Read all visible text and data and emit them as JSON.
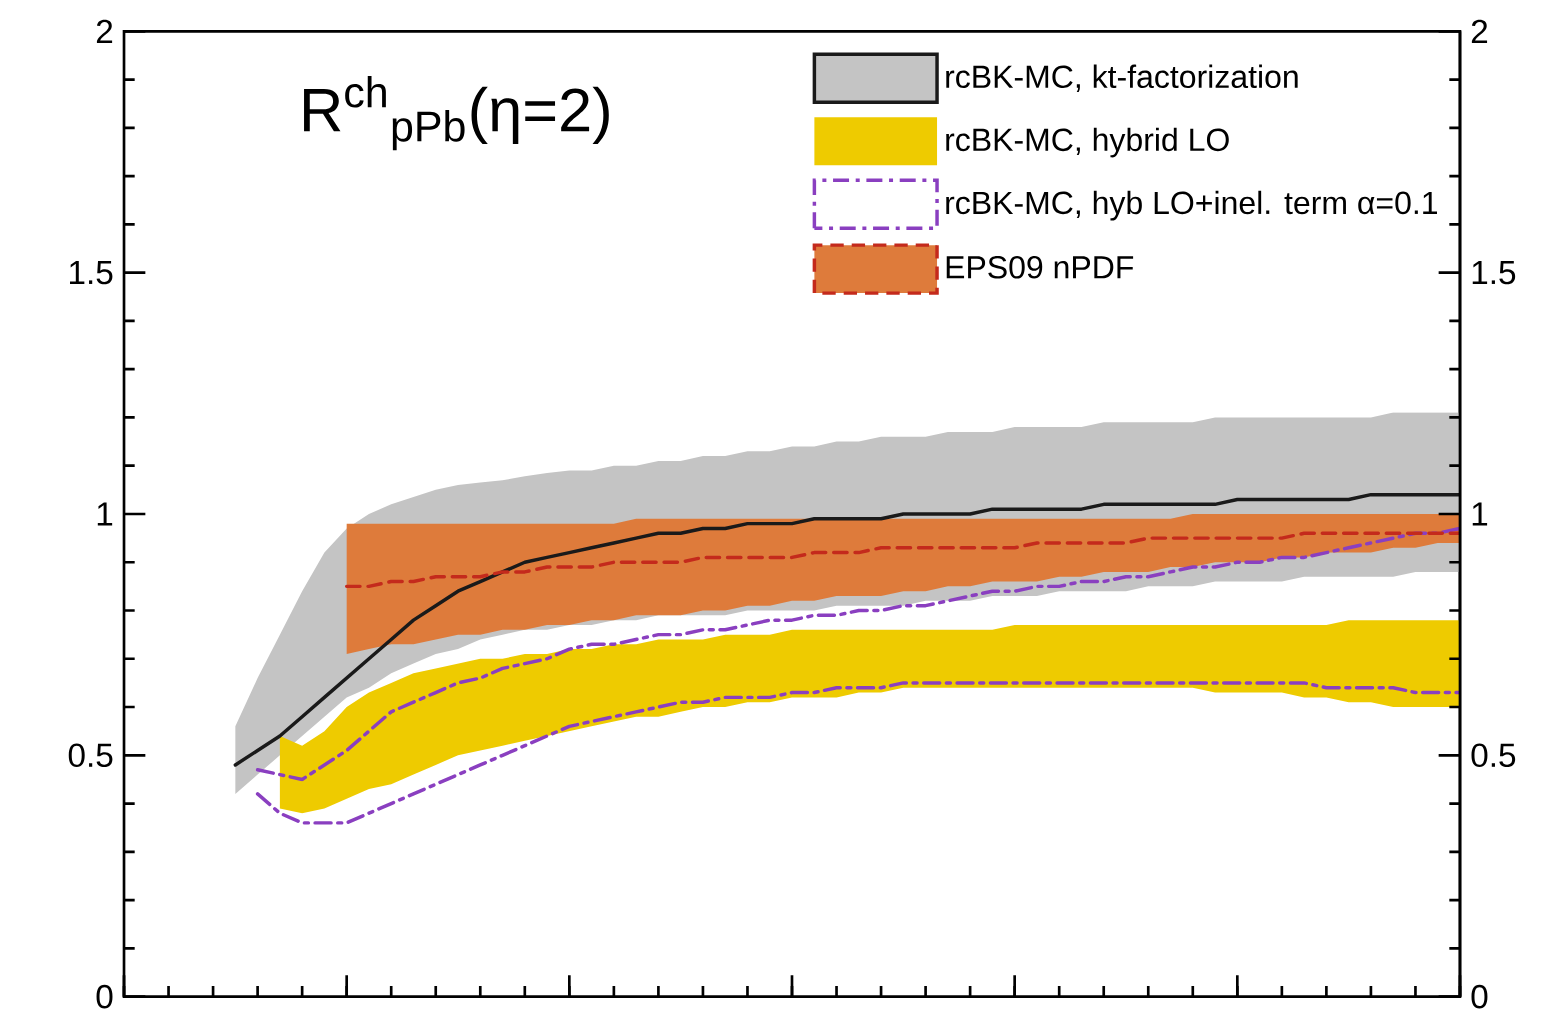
{
  "chart_data": {
    "type": "line",
    "title": "R$^{ch}$$_{pPb}$(η=2)",
    "categories": [
      null,
      null,
      null,
      null,
      null,
      null,
      null,
      null,
      null,
      null,
      null,
      null,
      null,
      null,
      null,
      null,
      null,
      null,
      null,
      null,
      null,
      null,
      null,
      null,
      null,
      null,
      null,
      null,
      null,
      null,
      null,
      null,
      null,
      null,
      null,
      null,
      null,
      null,
      null,
      null,
      null,
      null,
      null,
      null,
      null,
      null,
      null,
      null,
      null,
      null,
      null,
      null,
      null,
      null,
      null,
      null
    ],
    "ylim": [
      0,
      2
    ],
    "yticks": [
      0,
      0.5,
      1,
      1.5,
      2
    ],
    "y2lim": [
      0,
      2
    ],
    "y2ticks": [
      0,
      0.5,
      1,
      1.5,
      2
    ],
    "legend": "top right",
    "series": [
      {
        "name": "rcBK-MC, kt-factorization",
        "color": "#c4c4c4",
        "values": [
          null,
          null,
          null,
          null,
          null,
          null,
          null,
          null,
          null,
          null,
          null,
          null,
          null,
          null,
          null,
          null,
          null,
          null,
          null,
          null,
          null,
          null,
          null,
          null,
          null,
          null,
          null,
          null,
          null,
          null,
          null,
          null,
          null,
          null,
          null,
          null,
          null,
          null,
          null,
          null,
          null,
          null,
          null,
          null,
          null,
          null,
          null,
          null,
          null,
          null,
          null,
          null,
          null,
          null,
          null,
          null
        ],
        "upper": [
          0.56,
          0.66,
          0.75,
          0.84,
          0.92,
          0.97,
          1.0,
          1.02,
          1.035,
          1.05,
          1.06,
          1.065,
          1.07,
          1.078,
          1.085,
          1.09,
          1.09,
          1.1,
          1.1,
          1.11,
          1.11,
          1.12,
          1.12,
          1.13,
          1.13,
          1.14,
          1.14,
          1.15,
          1.15,
          1.16,
          1.16,
          1.16,
          1.17,
          1.17,
          1.17,
          1.18,
          1.18,
          1.18,
          1.18,
          1.19,
          1.19,
          1.19,
          1.19,
          1.19,
          1.2,
          1.2,
          1.2,
          1.2,
          1.2,
          1.2,
          1.2,
          1.2,
          1.21,
          1.21,
          1.21,
          1.21
        ],
        "lower": [
          0.42,
          0.46,
          0.5,
          0.54,
          0.58,
          0.62,
          0.64,
          0.67,
          0.69,
          0.71,
          0.72,
          0.74,
          0.75,
          0.76,
          0.76,
          0.77,
          0.77,
          0.78,
          0.78,
          0.79,
          0.79,
          0.79,
          0.79,
          0.8,
          0.8,
          0.8,
          0.8,
          0.81,
          0.81,
          0.81,
          0.81,
          0.82,
          0.82,
          0.82,
          0.83,
          0.83,
          0.83,
          0.84,
          0.84,
          0.84,
          0.84,
          0.85,
          0.85,
          0.85,
          0.86,
          0.86,
          0.86,
          0.86,
          0.87,
          0.87,
          0.87,
          0.87,
          0.87,
          0.88,
          0.88,
          0.88
        ]
      },
      {
        "color": "#1a1a1a",
        "line_style": "solid",
        "values": [
          0.48,
          0.51,
          0.54,
          0.58,
          0.62,
          0.66,
          0.7,
          0.74,
          0.78,
          0.81,
          0.84,
          0.86,
          0.88,
          0.9,
          0.91,
          0.92,
          0.93,
          0.94,
          0.95,
          0.96,
          0.96,
          0.97,
          0.97,
          0.98,
          0.98,
          0.98,
          0.99,
          0.99,
          0.99,
          0.99,
          1.0,
          1.0,
          1.0,
          1.0,
          1.01,
          1.01,
          1.01,
          1.01,
          1.01,
          1.02,
          1.02,
          1.02,
          1.02,
          1.02,
          1.02,
          1.03,
          1.03,
          1.03,
          1.03,
          1.03,
          1.03,
          1.04,
          1.04,
          1.04,
          1.04,
          1.04
        ]
      },
      {
        "name": "rcBK-MC, hybrid LO",
        "color": "#eecb00",
        "values": [
          null,
          null,
          null,
          null,
          null,
          null,
          null,
          null,
          null,
          null,
          null,
          null,
          null,
          null,
          null,
          null,
          null,
          null,
          null,
          null,
          null,
          null,
          null,
          null,
          null,
          null,
          null,
          null,
          null,
          null,
          null,
          null,
          null,
          null,
          null,
          null,
          null,
          null,
          null,
          null,
          null,
          null,
          null,
          null,
          null,
          null,
          null,
          null,
          null,
          null,
          null,
          null,
          null,
          null,
          null,
          null
        ],
        "upper": [
          null,
          null,
          0.54,
          0.52,
          0.55,
          0.6,
          0.63,
          0.65,
          0.67,
          0.68,
          0.69,
          0.7,
          0.7,
          0.71,
          0.71,
          0.72,
          0.72,
          0.73,
          0.73,
          0.74,
          0.74,
          0.74,
          0.75,
          0.75,
          0.75,
          0.76,
          0.76,
          0.76,
          0.76,
          0.76,
          0.76,
          0.76,
          0.76,
          0.76,
          0.76,
          0.77,
          0.77,
          0.77,
          0.77,
          0.77,
          0.77,
          0.77,
          0.77,
          0.77,
          0.77,
          0.77,
          0.77,
          0.77,
          0.77,
          0.77,
          0.78,
          0.78,
          0.78,
          0.78,
          0.78,
          0.78
        ],
        "lower": [
          null,
          null,
          0.39,
          0.38,
          0.39,
          0.41,
          0.43,
          0.44,
          0.46,
          0.48,
          0.5,
          0.51,
          0.52,
          0.53,
          0.54,
          0.55,
          0.56,
          0.57,
          0.58,
          0.58,
          0.59,
          0.6,
          0.6,
          0.61,
          0.61,
          0.62,
          0.62,
          0.62,
          0.63,
          0.63,
          0.64,
          0.64,
          0.64,
          0.64,
          0.64,
          0.64,
          0.64,
          0.64,
          0.64,
          0.64,
          0.64,
          0.64,
          0.64,
          0.64,
          0.63,
          0.63,
          0.63,
          0.63,
          0.62,
          0.62,
          0.61,
          0.61,
          0.6,
          0.6,
          0.6,
          0.6
        ]
      },
      {
        "name": "rcBK-MC, hyb LO+inel. term α=0.1",
        "color": "#8a3fc0",
        "line_style": "dashdot",
        "values": [
          null,
          0.47,
          0.46,
          0.45,
          0.48,
          0.51,
          0.55,
          0.59,
          0.61,
          0.63,
          0.65,
          0.66,
          0.68,
          0.69,
          0.7,
          0.72,
          0.73,
          0.73,
          0.74,
          0.75,
          0.75,
          0.76,
          0.76,
          0.77,
          0.78,
          0.78,
          0.79,
          0.79,
          0.8,
          0.8,
          0.81,
          0.81,
          0.82,
          0.83,
          0.84,
          0.84,
          0.85,
          0.85,
          0.86,
          0.86,
          0.87,
          0.87,
          0.88,
          0.89,
          0.89,
          0.9,
          0.9,
          0.91,
          0.91,
          0.92,
          0.93,
          0.94,
          0.95,
          0.96,
          0.96,
          0.97
        ]
      },
      {
        "color": "#8a3fc0",
        "line_style": "dashdot",
        "values": [
          null,
          0.42,
          0.38,
          0.36,
          0.36,
          0.36,
          0.38,
          0.4,
          0.42,
          0.44,
          0.46,
          0.48,
          0.5,
          0.52,
          0.54,
          0.56,
          0.57,
          0.58,
          0.59,
          0.6,
          0.61,
          0.61,
          0.62,
          0.62,
          0.62,
          0.63,
          0.63,
          0.64,
          0.64,
          0.64,
          0.65,
          0.65,
          0.65,
          0.65,
          0.65,
          0.65,
          0.65,
          0.65,
          0.65,
          0.65,
          0.65,
          0.65,
          0.65,
          0.65,
          0.65,
          0.65,
          0.65,
          0.65,
          0.65,
          0.64,
          0.64,
          0.64,
          0.64,
          0.63,
          0.63,
          0.63
        ]
      },
      {
        "name": "EPS09 nPDF",
        "color": "#de7b3b",
        "values": [
          null,
          null,
          null,
          null,
          null,
          null,
          null,
          null,
          null,
          null,
          null,
          null,
          null,
          null,
          null,
          null,
          null,
          null,
          null,
          null,
          null,
          null,
          null,
          null,
          null,
          null,
          null,
          null,
          null,
          null,
          null,
          null,
          null,
          null,
          null,
          null,
          null,
          null,
          null,
          null,
          null,
          null,
          null,
          null,
          null,
          null,
          null,
          null,
          null,
          null,
          null,
          null,
          null,
          null,
          null,
          null
        ],
        "upper": [
          null,
          null,
          null,
          null,
          null,
          0.98,
          0.98,
          0.98,
          0.98,
          0.98,
          0.98,
          0.98,
          0.98,
          0.98,
          0.98,
          0.98,
          0.98,
          0.98,
          0.99,
          0.99,
          0.99,
          0.99,
          0.99,
          0.99,
          0.99,
          0.99,
          0.99,
          0.99,
          0.99,
          0.99,
          0.99,
          0.99,
          0.99,
          0.99,
          0.99,
          0.99,
          0.99,
          0.99,
          0.99,
          0.99,
          0.99,
          0.99,
          0.99,
          1.0,
          1.0,
          1.0,
          1.0,
          1.0,
          1.0,
          1.0,
          1.0,
          1.0,
          1.0,
          1.0,
          1.0,
          1.0
        ],
        "lower": [
          null,
          null,
          null,
          null,
          null,
          0.71,
          0.72,
          0.73,
          0.73,
          0.74,
          0.75,
          0.75,
          0.76,
          0.76,
          0.77,
          0.77,
          0.78,
          0.78,
          0.79,
          0.79,
          0.79,
          0.8,
          0.8,
          0.81,
          0.81,
          0.82,
          0.82,
          0.83,
          0.83,
          0.83,
          0.84,
          0.84,
          0.85,
          0.85,
          0.86,
          0.86,
          0.86,
          0.87,
          0.87,
          0.88,
          0.88,
          0.88,
          0.89,
          0.89,
          0.9,
          0.9,
          0.9,
          0.91,
          0.91,
          0.92,
          0.92,
          0.92,
          0.93,
          0.93,
          0.94,
          0.94
        ]
      },
      {
        "color": "#c42a1c",
        "line_style": "dashed",
        "values": [
          null,
          null,
          null,
          null,
          null,
          0.85,
          0.85,
          0.86,
          0.86,
          0.87,
          0.87,
          0.87,
          0.88,
          0.88,
          0.89,
          0.89,
          0.89,
          0.9,
          0.9,
          0.9,
          0.9,
          0.91,
          0.91,
          0.91,
          0.91,
          0.91,
          0.92,
          0.92,
          0.92,
          0.93,
          0.93,
          0.93,
          0.93,
          0.93,
          0.93,
          0.93,
          0.94,
          0.94,
          0.94,
          0.94,
          0.94,
          0.95,
          0.95,
          0.95,
          0.95,
          0.95,
          0.95,
          0.95,
          0.96,
          0.96,
          0.96,
          0.96,
          0.96,
          0.96,
          0.96,
          0.96
        ]
      }
    ]
  }
}
